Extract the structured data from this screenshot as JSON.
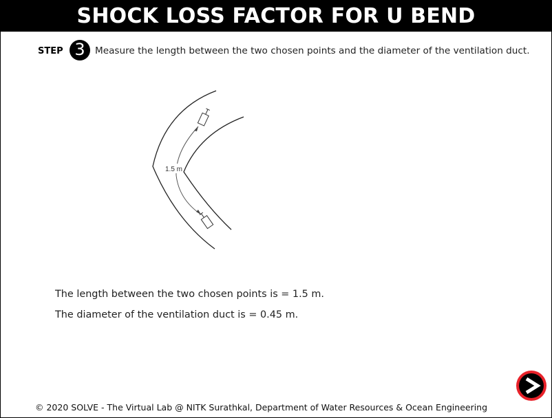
{
  "header": {
    "title": "SHOCK LOSS FACTOR FOR U BEND"
  },
  "step": {
    "label": "STEP",
    "number": "3",
    "instruction": "Measure the length between the two chosen points and the diameter of the ventilation duct."
  },
  "diagram": {
    "distance_label": "1.5 m"
  },
  "results": {
    "length_text": "The length between the two chosen points is = 1.5 m.",
    "diameter_text": "The diameter of the ventilation duct is = 0.45 m."
  },
  "navigation": {
    "next_icon": "next-arrow-icon",
    "accent_color": "#e8222a"
  },
  "footer": {
    "copyright": "© 2020 SOLVE - The Virtual Lab @ NITK Surathkal, Department of Water Resources & Ocean Engineering"
  }
}
